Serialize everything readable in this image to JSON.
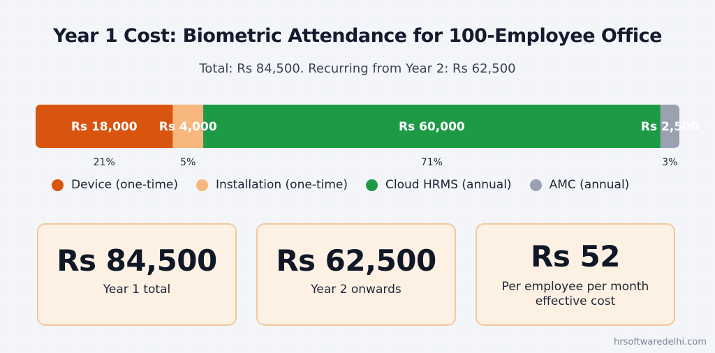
{
  "title": "Year 1 Cost: Biometric Attendance for 100-Employee Office",
  "subtitle": "Total: Rs 84,500. Recurring from Year 2: Rs 62,500",
  "chart_data": {
    "type": "bar",
    "orientation": "horizontal-stacked-100",
    "currency": "Rs",
    "total": 84500,
    "segments": [
      {
        "name": "Device (one-time)",
        "value": 18000,
        "label": "Rs 18,000",
        "percent_label": "21%",
        "color": "#d9540f"
      },
      {
        "name": "Installation (one-time)",
        "value": 4000,
        "label": "Rs 4,000",
        "percent_label": "5%",
        "color": "#f7b77c"
      },
      {
        "name": "Cloud HRMS (annual)",
        "value": 60000,
        "label": "Rs 60,000",
        "percent_label": "71%",
        "color": "#1e9a47"
      },
      {
        "name": "AMC (annual)",
        "value": 2500,
        "label": "Rs 2,500",
        "percent_label": "3%",
        "color": "#9aa2b1"
      }
    ],
    "legend_position": "bottom"
  },
  "cards": [
    {
      "value": "Rs 84,500",
      "caption": "Year 1 total"
    },
    {
      "value": "Rs 62,500",
      "caption": "Year 2 onwards"
    },
    {
      "value": "Rs 52",
      "caption_line1": "Per employee per month",
      "caption_line2": "effective cost"
    }
  ],
  "watermark": "hrsoftwaredelhi.com"
}
